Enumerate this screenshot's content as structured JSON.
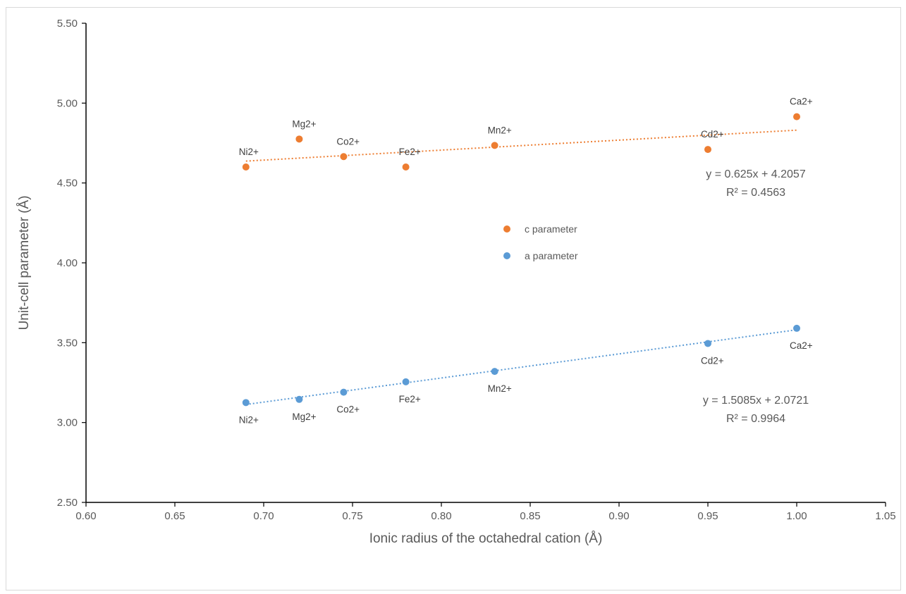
{
  "chart_data": {
    "type": "scatter",
    "title": "",
    "xlabel": "Ionic radius of the octahedral cation (Å)",
    "ylabel": "Unit-cell parameter (Å)",
    "xlim": [
      0.6,
      1.05
    ],
    "ylim": [
      2.5,
      5.5
    ],
    "x_ticks": [
      "0.60",
      "0.65",
      "0.70",
      "0.75",
      "0.80",
      "0.85",
      "0.90",
      "0.95",
      "1.00",
      "1.05"
    ],
    "y_ticks": [
      "2.50",
      "3.00",
      "3.50",
      "4.00",
      "4.50",
      "5.00",
      "5.50"
    ],
    "grid": false,
    "legend_position": "center",
    "series": [
      {
        "name": "c parameter",
        "color": "#ed7d31",
        "points": [
          {
            "x": 0.69,
            "y": 4.6,
            "label": "Ni2+"
          },
          {
            "x": 0.72,
            "y": 4.775,
            "label": "Mg2+"
          },
          {
            "x": 0.745,
            "y": 4.665,
            "label": "Co2+"
          },
          {
            "x": 0.78,
            "y": 4.6,
            "label": "Fe2+"
          },
          {
            "x": 0.83,
            "y": 4.735,
            "label": "Mn2+"
          },
          {
            "x": 0.95,
            "y": 4.71,
            "label": "Cd2+"
          },
          {
            "x": 1.0,
            "y": 4.915,
            "label": "Ca2+"
          }
        ],
        "trendline": {
          "slope": 0.625,
          "intercept": 4.2057,
          "equation": "y = 0.625x + 4.2057",
          "r2": "R² = 0.4563"
        }
      },
      {
        "name": "a parameter",
        "color": "#5b9bd5",
        "points": [
          {
            "x": 0.69,
            "y": 3.125,
            "label": "Ni2+"
          },
          {
            "x": 0.72,
            "y": 3.145,
            "label": "Mg2+"
          },
          {
            "x": 0.745,
            "y": 3.19,
            "label": "Co2+"
          },
          {
            "x": 0.78,
            "y": 3.255,
            "label": "Fe2+"
          },
          {
            "x": 0.83,
            "y": 3.32,
            "label": "Mn2+"
          },
          {
            "x": 0.95,
            "y": 3.495,
            "label": "Cd2+"
          },
          {
            "x": 1.0,
            "y": 3.59,
            "label": "Ca2+"
          }
        ],
        "trendline": {
          "slope": 1.5085,
          "intercept": 2.0721,
          "equation": "y = 1.5085x + 2.0721",
          "r2": "R² = 0.9964"
        }
      }
    ]
  }
}
